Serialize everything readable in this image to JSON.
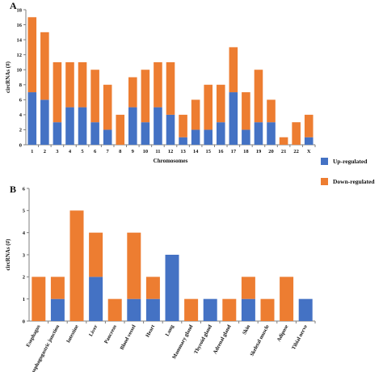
{
  "colors": {
    "up": "#4472C4",
    "down": "#ED7D31",
    "axis": "#7f7f7f"
  },
  "legend": {
    "up_label": "Up-regulated",
    "down_label": "Down-regulated"
  },
  "chart_data": [
    {
      "panel": "A",
      "type": "bar",
      "stacked": true,
      "xlabel": "Chromosomes",
      "ylabel": "circRNAs (#)",
      "ylim": [
        0,
        18
      ],
      "yticks": [
        0,
        2,
        4,
        6,
        8,
        10,
        12,
        14,
        16,
        18
      ],
      "categories": [
        "1",
        "2",
        "3",
        "4",
        "5",
        "6",
        "7",
        "8",
        "9",
        "10",
        "11",
        "12",
        "13",
        "14",
        "15",
        "16",
        "17",
        "18",
        "19",
        "20",
        "21",
        "22",
        "X"
      ],
      "series": [
        {
          "name": "Up-regulated",
          "values": [
            7,
            6,
            3,
            5,
            5,
            3,
            2,
            0,
            5,
            3,
            5,
            4,
            1,
            2,
            2,
            3,
            7,
            2,
            3,
            3,
            0,
            0,
            1
          ]
        },
        {
          "name": "Down-regulated",
          "values": [
            10,
            9,
            8,
            6,
            6,
            7,
            6,
            4,
            4,
            7,
            6,
            7,
            3,
            4,
            6,
            5,
            6,
            5,
            7,
            3,
            1,
            3,
            3
          ]
        }
      ]
    },
    {
      "panel": "B",
      "type": "bar",
      "stacked": true,
      "xlabel": "",
      "ylabel": "circRNAs (#)",
      "ylim": [
        0,
        6
      ],
      "yticks": [
        0,
        1,
        2,
        3,
        4,
        5,
        6
      ],
      "categories": [
        "Esophagus",
        "Esophagogastric junction",
        "Intestine",
        "Liver",
        "Pancreas",
        "Blood vessel",
        "Heart",
        "Lung",
        "Mammary gland",
        "Thyroid gland",
        "Adrenal gland",
        "Skin",
        "Skeletal muscle",
        "Adipose",
        "Tibial nerve"
      ],
      "series": [
        {
          "name": "Up-regulated",
          "values": [
            0,
            1,
            0,
            2,
            0,
            1,
            1,
            3,
            0,
            1,
            0,
            1,
            0,
            0,
            1
          ]
        },
        {
          "name": "Down-regulated",
          "values": [
            2,
            1,
            5,
            2,
            1,
            3,
            1,
            0,
            1,
            0,
            1,
            1,
            1,
            2,
            0
          ]
        }
      ]
    }
  ]
}
